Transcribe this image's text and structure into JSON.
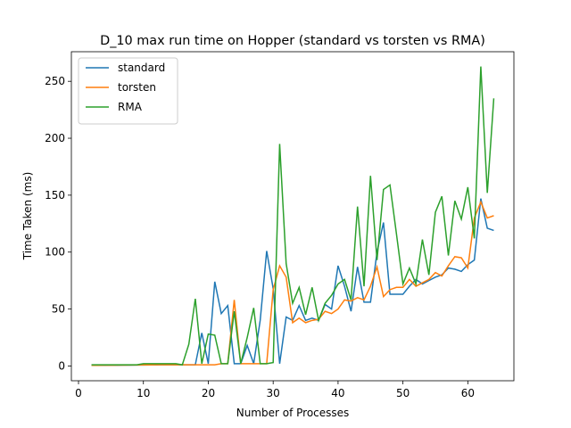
{
  "chart_data": {
    "type": "line",
    "title": "D_10 max run time on Hopper (standard vs torsten vs RMA)",
    "x_label": "Number of Processes",
    "y_label": "Time Taken (ms)",
    "x": [
      2,
      3,
      4,
      5,
      6,
      7,
      8,
      9,
      10,
      11,
      12,
      13,
      14,
      15,
      16,
      17,
      18,
      19,
      20,
      21,
      22,
      23,
      24,
      25,
      26,
      27,
      28,
      29,
      30,
      31,
      32,
      33,
      34,
      35,
      36,
      37,
      38,
      39,
      40,
      41,
      42,
      43,
      44,
      45,
      46,
      47,
      48,
      49,
      50,
      51,
      52,
      53,
      54,
      55,
      56,
      57,
      58,
      59,
      60,
      61,
      62,
      63,
      64
    ],
    "series": [
      {
        "name": "standard",
        "color": "#1f77b4",
        "values": [
          0.5,
          0.5,
          0.5,
          0.6,
          0.6,
          0.7,
          0.7,
          0.8,
          0.8,
          0.9,
          0.9,
          1,
          1,
          1,
          1,
          1,
          1,
          29,
          2,
          74,
          46,
          53,
          2,
          2,
          18,
          2,
          40,
          101,
          68,
          2,
          43,
          40,
          53,
          40,
          42,
          40,
          54,
          50,
          88,
          70,
          48,
          87,
          56,
          56,
          100,
          126,
          63,
          63,
          63,
          70,
          76,
          72,
          75,
          78,
          80,
          86,
          85,
          83,
          89,
          93,
          147,
          121,
          119
        ]
      },
      {
        "name": "torsten",
        "color": "#ff7f0e",
        "values": [
          0.5,
          0.5,
          0.6,
          0.6,
          0.7,
          0.7,
          0.8,
          0.8,
          0.9,
          0.9,
          1,
          1,
          1,
          1,
          1,
          1,
          1,
          1,
          1,
          1,
          2,
          2,
          58,
          2,
          2,
          2,
          2,
          2,
          67,
          88,
          78,
          38,
          42,
          38,
          40,
          41,
          48,
          46,
          50,
          58,
          57,
          60,
          58,
          70,
          87,
          61,
          67,
          69,
          69,
          76,
          70,
          73,
          76,
          82,
          79,
          88,
          96,
          95,
          86,
          130,
          144,
          130,
          132
        ]
      },
      {
        "name": "RMA",
        "color": "#2ca02c",
        "values": [
          1,
          1,
          1,
          1,
          1,
          1,
          1,
          1,
          2,
          2,
          2,
          2,
          2,
          2,
          1,
          19,
          59,
          2,
          28,
          27,
          2,
          2,
          48,
          2,
          25,
          51,
          2,
          2,
          3,
          195,
          90,
          55,
          69,
          45,
          69,
          40,
          55,
          62,
          72,
          76,
          58,
          140,
          70,
          167,
          93,
          155,
          159,
          116,
          72,
          86,
          72,
          111,
          80,
          135,
          149,
          97,
          145,
          129,
          157,
          112,
          263,
          152,
          235
        ]
      }
    ],
    "xlim": [
      -1.1,
      67.1
    ],
    "xticks": [
      0,
      10,
      20,
      30,
      40,
      50,
      60
    ],
    "ylim": [
      -13,
      276
    ],
    "yticks": [
      0,
      50,
      100,
      150,
      200,
      250
    ],
    "legend": "upper left"
  }
}
